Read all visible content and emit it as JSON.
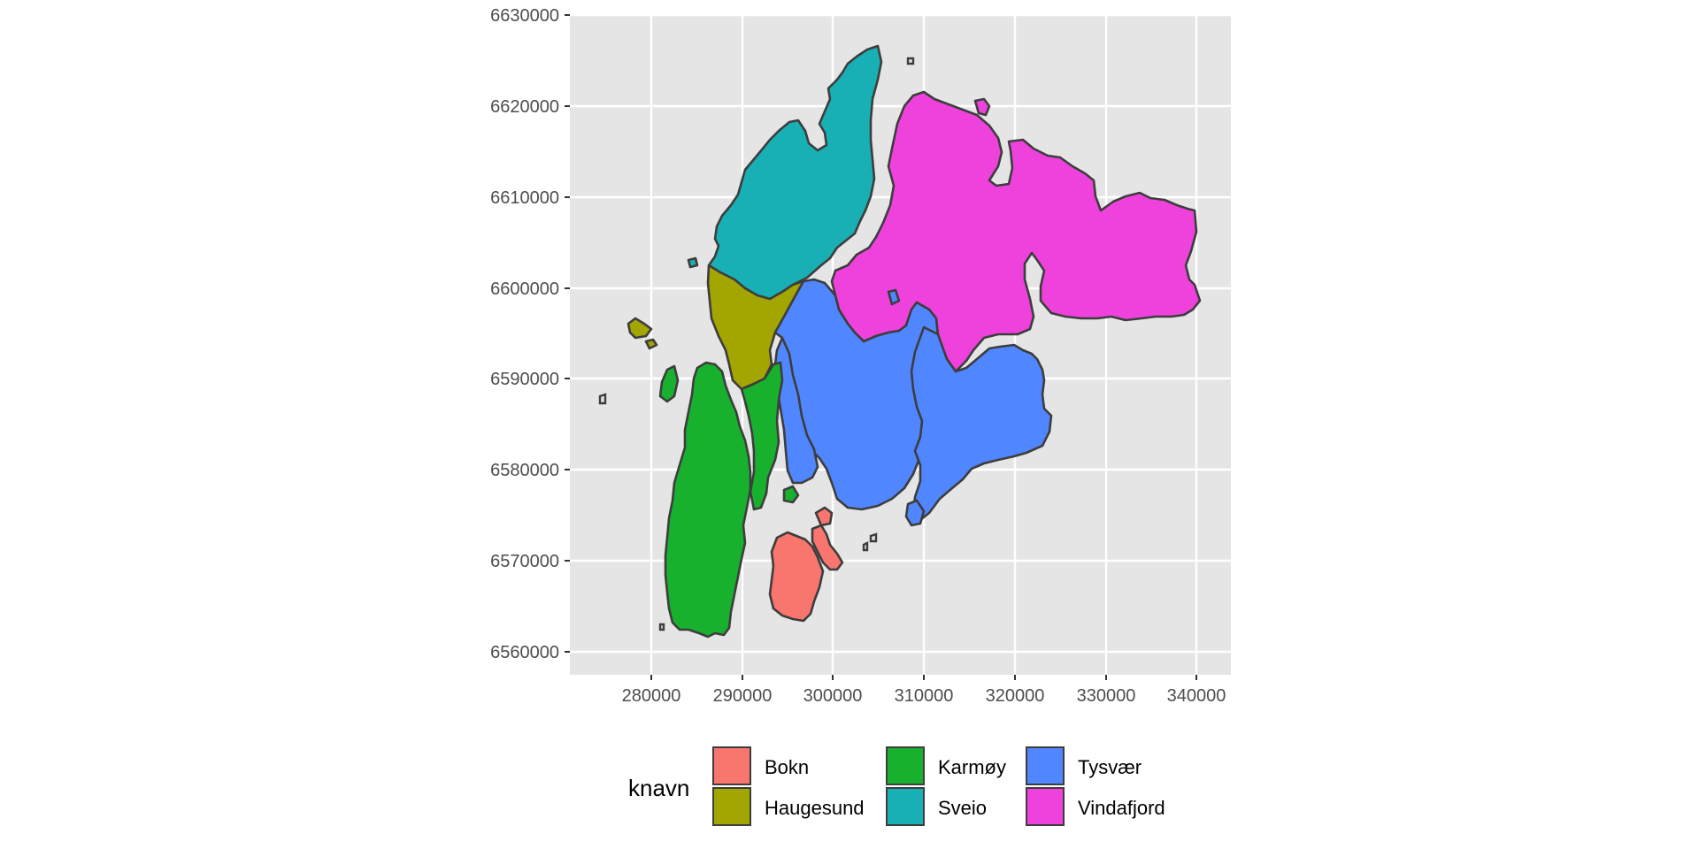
{
  "chart_data": {
    "type": "map",
    "x_ticks": [
      "280000",
      "290000",
      "300000",
      "310000",
      "320000",
      "330000",
      "340000"
    ],
    "y_ticks": [
      "6630000",
      "6620000",
      "6610000",
      "6600000",
      "6590000",
      "6580000",
      "6570000",
      "6560000"
    ],
    "xlim": [
      271000,
      344000
    ],
    "ylim": [
      6557500,
      6630000
    ],
    "grid": true,
    "legend": {
      "title": "knavn",
      "placement": "bottom",
      "entries": [
        {
          "name": "Bokn",
          "color": "#F8766D"
        },
        {
          "name": "Haugesund",
          "color": "#A3A500"
        },
        {
          "name": "Karmøy",
          "color": "#18B12E"
        },
        {
          "name": "Sveio",
          "color": "#18B0B5"
        },
        {
          "name": "Tysvær",
          "color": "#5086FF"
        },
        {
          "name": "Vindafjord",
          "color": "#EF42DC"
        }
      ]
    },
    "colors": {
      "panel": "#E5E5E5",
      "grid": "#FFFFFF",
      "outline": "#3D3D3D"
    }
  }
}
